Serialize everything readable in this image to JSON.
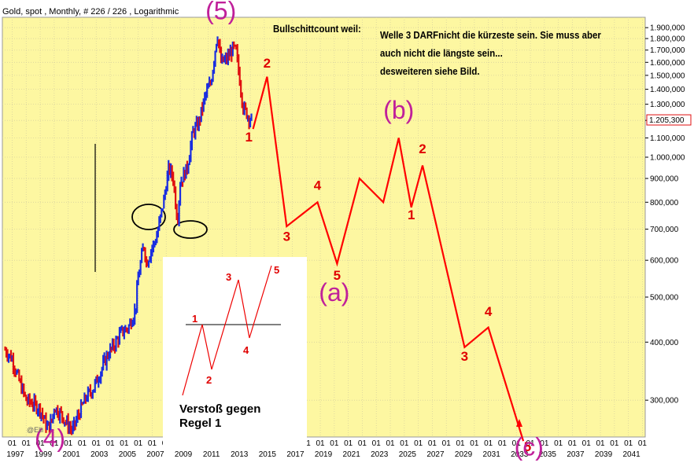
{
  "chart_data": {
    "type": "line",
    "title": "Gold, spot , Monthly, # 226 / 226 , Logarithmic",
    "scale": "log",
    "ylim": [
      250,
      2000
    ],
    "xlim": [
      1996.3,
      2042.2
    ],
    "y_ticks": [
      300,
      400,
      500,
      600,
      700,
      800,
      900,
      1000,
      1100,
      1200,
      1300,
      1400,
      1500,
      1600,
      1700,
      1800,
      1900
    ],
    "y_tick_labels": [
      "300,000",
      "400,000",
      "500,000",
      "600,000",
      "700,000",
      "800,000",
      "900,000",
      "1.000,000",
      "1.100,000",
      "1.200,000",
      "1.300,000",
      "1.400,000",
      "1.500,000",
      "1.600,000",
      "1.700,000",
      "1.800,000",
      "1.900,000"
    ],
    "x_year_labels": [
      "1997",
      "1999",
      "2001",
      "2003",
      "2005",
      "2007",
      "2009",
      "2011",
      "2013",
      "2015",
      "2017",
      "2019",
      "2021",
      "2023",
      "2025",
      "2027",
      "2029",
      "2031",
      "2033",
      "2035",
      "2037",
      "2039",
      "2041"
    ],
    "x_minor_label": "01",
    "last_price": 1205.3,
    "last_price_label": "1.205,300",
    "grid": true,
    "colors": {
      "background": "#fdf7a1",
      "up": "#1a2ee0",
      "down": "#e01010",
      "projection": "#ff0000",
      "wave_label": "#e00000",
      "degree_label": "#c0209a"
    },
    "price_history": [
      [
        1996.5,
        385
      ],
      [
        1997.0,
        368
      ],
      [
        1997.5,
        330
      ],
      [
        1998.0,
        300
      ],
      [
        1998.5,
        295
      ],
      [
        1999.0,
        287
      ],
      [
        1999.5,
        262
      ],
      [
        1999.83,
        270
      ],
      [
        2000.0,
        290
      ],
      [
        2000.5,
        280
      ],
      [
        2001.0,
        265
      ],
      [
        2001.3,
        258
      ],
      [
        2001.8,
        282
      ],
      [
        2002.3,
        305
      ],
      [
        2002.8,
        318
      ],
      [
        2003.3,
        345
      ],
      [
        2003.8,
        375
      ],
      [
        2004.3,
        395
      ],
      [
        2004.8,
        420
      ],
      [
        2005.3,
        430
      ],
      [
        2005.8,
        470
      ],
      [
        2006.0,
        550
      ],
      [
        2006.4,
        650
      ],
      [
        2006.6,
        590
      ],
      [
        2006.9,
        630
      ],
      [
        2007.3,
        670
      ],
      [
        2007.8,
        800
      ],
      [
        2008.2,
        950
      ],
      [
        2008.5,
        900
      ],
      [
        2008.8,
        730
      ],
      [
        2009.0,
        880
      ],
      [
        2009.5,
        950
      ],
      [
        2009.9,
        1130
      ],
      [
        2010.3,
        1180
      ],
      [
        2010.8,
        1360
      ],
      [
        2011.2,
        1450
      ],
      [
        2011.65,
        1850
      ],
      [
        2011.9,
        1600
      ],
      [
        2012.3,
        1620
      ],
      [
        2012.8,
        1720
      ],
      [
        2013.0,
        1680
      ],
      [
        2013.5,
        1280
      ],
      [
        2013.9,
        1220
      ],
      [
        2014.1,
        1205
      ]
    ],
    "projection": [
      [
        2014.2,
        1150
      ],
      [
        2015.2,
        1490
      ],
      [
        2016.6,
        710
      ],
      [
        2018.8,
        800
      ],
      [
        2020.2,
        590
      ],
      [
        2021.8,
        900
      ],
      [
        2023.5,
        800
      ],
      [
        2024.6,
        1100
      ],
      [
        2025.5,
        780
      ],
      [
        2026.3,
        960
      ],
      [
        2029.3,
        390
      ],
      [
        2031.0,
        430
      ],
      [
        2033.5,
        245
      ]
    ],
    "wave_labels": [
      {
        "text": "1",
        "x": 2013.9,
        "y": 1080
      },
      {
        "text": "2",
        "x": 2015.2,
        "y": 1560
      },
      {
        "text": "3",
        "x": 2016.6,
        "y": 660
      },
      {
        "text": "4",
        "x": 2018.8,
        "y": 850
      },
      {
        "text": "5",
        "x": 2020.2,
        "y": 545
      },
      {
        "text": "1",
        "x": 2025.5,
        "y": 735
      },
      {
        "text": "2",
        "x": 2026.3,
        "y": 1020
      },
      {
        "text": "3",
        "x": 2029.3,
        "y": 365
      },
      {
        "text": "4",
        "x": 2031.0,
        "y": 455
      },
      {
        "text": "5",
        "x": 2033.8,
        "y": 233
      }
    ],
    "degree_labels": [
      {
        "text": "(5)",
        "x": 2011.9,
        "y": 1980
      },
      {
        "text": "(4)",
        "x": 1999.7,
        "y": 238
      },
      {
        "text": "(a)",
        "x": 2020.0,
        "y": 490
      },
      {
        "text": "(b)",
        "x": 2024.6,
        "y": 1210
      },
      {
        "text": "(c)",
        "x": 2033.9,
        "y": 228
      }
    ],
    "watermark": "@Elli"
  },
  "notes": {
    "reason_title": "Bullschittcount weil:",
    "reason_line1": "Welle 3 DARFnicht die kürzeste sein. Sie muss aber",
    "reason_line2": "auch nicht die längste sein...",
    "reason_line3": "desweiteren siehe Bild."
  },
  "inset": {
    "labels": [
      "1",
      "2",
      "3",
      "4",
      "5"
    ],
    "caption_line1": "Verstoß gegen",
    "caption_line2": "Regel 1"
  }
}
